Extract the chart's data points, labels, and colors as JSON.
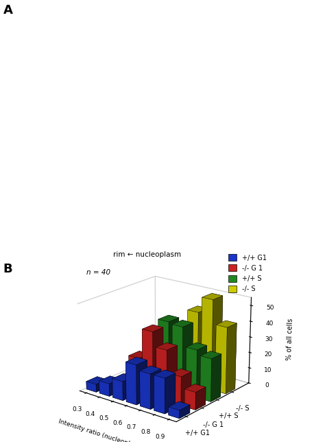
{
  "annotation": "n = 40",
  "top_label": "rim ← nucleoplasm",
  "xlabel": "Intensity ratio (nucleoplasm/rim)",
  "ylabel": "% of all cells",
  "x_ticks": [
    0.3,
    0.4,
    0.5,
    0.6,
    0.7,
    0.8,
    0.9
  ],
  "series_order": [
    "+/+ G1",
    "-/- G 1",
    "+/+ S",
    "-/- S"
  ],
  "series": {
    "+/+ G1": {
      "color": "#1a35c8",
      "values": [
        5,
        8,
        12,
        25,
        22,
        22,
        5
      ]
    },
    "-/- G 1": {
      "color": "#cc2222",
      "values": [
        0,
        5,
        22,
        41,
        32,
        18,
        11
      ]
    },
    "+/+ S": {
      "color": "#228822",
      "values": [
        0,
        0,
        5,
        43,
        42,
        30,
        27
      ]
    },
    "-/- S": {
      "color": "#cccc00",
      "values": [
        0,
        0,
        2,
        5,
        47,
        57,
        42
      ]
    }
  },
  "legend_labels": [
    "+/+ G1",
    "-/- G 1",
    "+/+ S",
    "-/- S"
  ],
  "legend_colors": [
    "#1a35c8",
    "#cc2222",
    "#228822",
    "#cccc00"
  ],
  "z_axis_labels": [
    "+/+ G1",
    "-/- G 1",
    "+/+ S",
    "-/- S"
  ],
  "ylim": [
    0,
    55
  ],
  "yticks": [
    0,
    10,
    20,
    30,
    40,
    50
  ],
  "background_color": "#ffffff",
  "figsize": [
    4.74,
    6.44
  ],
  "dpi": 100
}
